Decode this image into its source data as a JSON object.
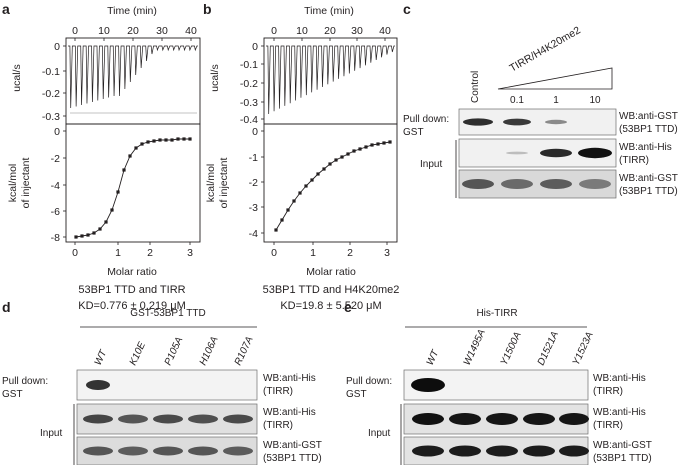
{
  "figure": {
    "panel_a": {
      "label": "a",
      "top_xlabel": "Time (min)",
      "top_ticks": [
        "0",
        "10",
        "20",
        "30",
        "40"
      ],
      "top_ylabel": "ucal/s",
      "top_yticks": [
        "0",
        "-0.1",
        "-0.2",
        "-0.3"
      ],
      "bottom_ylabel1": "kcal/mol",
      "bottom_ylabel2": "of injectant",
      "bottom_yticks": [
        "0",
        "-2",
        "-4",
        "-6",
        "-8"
      ],
      "bottom_xticks": [
        "0",
        "1",
        "2",
        "3"
      ],
      "xlabel": "Molar ratio",
      "caption1": "53BP1 TTD and TIRR",
      "caption2": "KD=0.776 ± 0.219 μM"
    },
    "panel_b": {
      "label": "b",
      "top_xlabel": "Time (min)",
      "top_ticks": [
        "0",
        "10",
        "20",
        "30",
        "40"
      ],
      "top_ylabel": "ucal/s",
      "top_yticks": [
        "0",
        "-0.1",
        "-0.2",
        "-0.3",
        "-0.4"
      ],
      "bottom_ylabel1": "kcal/mol",
      "bottom_ylabel2": "of injectant",
      "bottom_yticks": [
        "0",
        "-1",
        "-2",
        "-3",
        "-4"
      ],
      "bottom_xticks": [
        "0",
        "1",
        "2",
        "3"
      ],
      "xlabel": "Molar ratio",
      "caption1": "53BP1 TTD and H4K20me2",
      "caption2": "KD=19.8 ± 5.520 μM"
    },
    "panel_c": {
      "label": "c",
      "titration": "TIRR/H4K20me2",
      "lanes": [
        "Control",
        "0.1",
        "1",
        "10"
      ],
      "pulldown1": "Pull down:",
      "pulldown2": "GST",
      "input": "Input",
      "blots": [
        {
          "l1": "WB:anti-GST",
          "l2": "(53BP1 TTD)"
        },
        {
          "l1": "WB:anti-His",
          "l2": "(TIRR)"
        },
        {
          "l1": "WB:anti-GST",
          "l2": "(53BP1 TTD)"
        }
      ]
    },
    "panel_d": {
      "label": "d",
      "header": "GST-53BP1 TTD",
      "lanes": [
        "WT",
        "K10E",
        "P105A",
        "H106A",
        "R107A"
      ],
      "pulldown1": "Pull down:",
      "pulldown2": "GST",
      "input": "Input",
      "blots": [
        {
          "l1": "WB:anti-His",
          "l2": "(TIRR)"
        },
        {
          "l1": "WB:anti-His",
          "l2": "(TIRR)"
        },
        {
          "l1": "WB:anti-GST",
          "l2": "(53BP1 TTD)"
        }
      ]
    },
    "panel_e": {
      "label": "e",
      "header": "His-TIRR",
      "lanes": [
        "WT",
        "W1495A",
        "Y1500A",
        "D1521A",
        "Y1523A"
      ],
      "pulldown1": "Pull down:",
      "pulldown2": "GST",
      "input": "Input",
      "blots": [
        {
          "l1": "WB:anti-His",
          "l2": "(TIRR)"
        },
        {
          "l1": "WB:anti-His",
          "l2": "(TIRR)"
        },
        {
          "l1": "WB:anti-GST",
          "l2": "(53BP1 TTD)"
        }
      ]
    }
  }
}
